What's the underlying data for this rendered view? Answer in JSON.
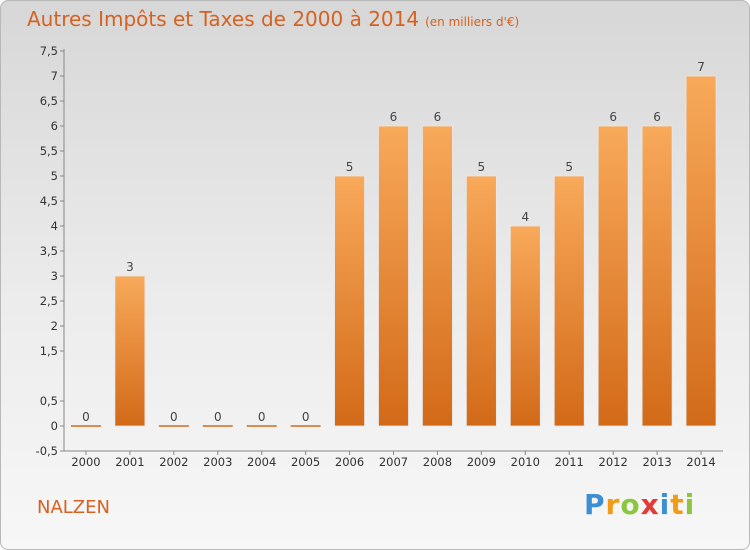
{
  "title": "Autres Impôts et Taxes de 2000 à 2014",
  "title_unit": "(en milliers d'€)",
  "commune": "NALZEN",
  "brand": {
    "letters": [
      "P",
      "r",
      "o",
      "x",
      "i",
      "t",
      "i"
    ],
    "colors": [
      "#3d8fd4",
      "#f39b16",
      "#8cc63f",
      "#e53935",
      "#3d8fd4",
      "#f39b16",
      "#8cc63f"
    ]
  },
  "colors": {
    "bar_light": "#f8a95a",
    "bar_dark": "#d26a18",
    "text_accent": "#d56220",
    "axis": "#888888"
  },
  "chart_data": {
    "type": "bar",
    "categories": [
      "2000",
      "2001",
      "2002",
      "2003",
      "2004",
      "2005",
      "2006",
      "2007",
      "2008",
      "2009",
      "2010",
      "2011",
      "2012",
      "2013",
      "2014"
    ],
    "values": [
      0,
      3,
      0,
      0,
      0,
      0,
      5,
      6,
      6,
      5,
      4,
      5,
      6,
      6,
      7
    ],
    "data_labels": [
      "0",
      "3",
      "0",
      "0",
      "0",
      "0",
      "5",
      "6",
      "6",
      "5",
      "4",
      "5",
      "6",
      "6",
      "7"
    ],
    "yticks": [
      -0.5,
      0,
      0.5,
      1.5,
      2,
      2.5,
      3,
      3.5,
      4,
      4.5,
      5,
      5.5,
      6,
      6.5,
      7,
      7.5
    ],
    "ytick_labels": [
      "-0,5",
      "0",
      "0,5",
      "1,5",
      "2",
      "2,5",
      "3",
      "3,5",
      "4",
      "4,5",
      "5",
      "5,5",
      "6",
      "6,5",
      "7",
      "7,5"
    ],
    "ylim": [
      -0.5,
      7.5
    ],
    "grid": false
  }
}
